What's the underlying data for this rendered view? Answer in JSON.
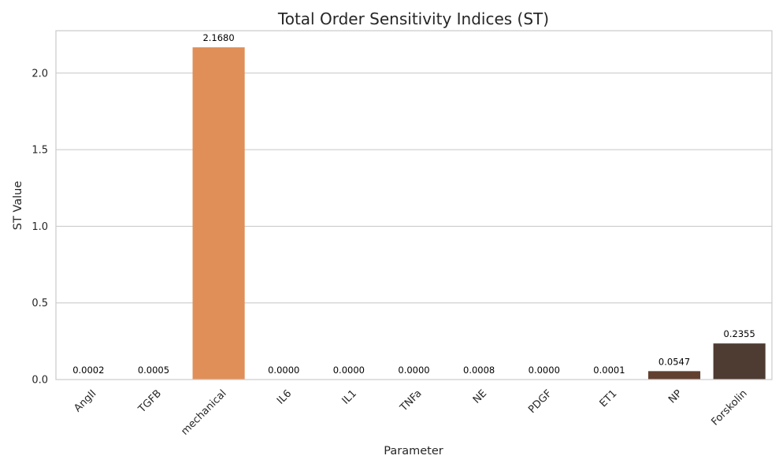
{
  "chart_data": {
    "type": "bar",
    "title": "Total Order Sensitivity Indices (ST)",
    "xlabel": "Parameter",
    "ylabel": "ST Value",
    "categories": [
      "AngII",
      "TGFB",
      "mechanical",
      "IL6",
      "IL1",
      "TNFa",
      "NE",
      "PDGF",
      "ET1",
      "NP",
      "Forskolin"
    ],
    "values": [
      0.0002,
      0.0005,
      2.168,
      0.0,
      0.0,
      0.0,
      0.0008,
      0.0,
      0.0001,
      0.0547,
      0.2355
    ],
    "value_labels": [
      "0.0002",
      "0.0005",
      "2.1680",
      "0.0000",
      "0.0000",
      "0.0000",
      "0.0008",
      "0.0000",
      "0.0001",
      "0.0547",
      "0.2355"
    ],
    "colors": [
      "#f7b98a",
      "#f3a873",
      "#e08f58",
      "#d0804c",
      "#bf7342",
      "#ad673b",
      "#9a5a34",
      "#885030",
      "#76462c",
      "#614030",
      "#4e3b31"
    ],
    "ylim": [
      0,
      2.2764
    ],
    "yticks": [
      0.0,
      0.5,
      1.0,
      1.5,
      2.0
    ],
    "ytick_labels": [
      "0.0",
      "0.5",
      "1.0",
      "1.5",
      "2.0"
    ],
    "grid": true,
    "grid_axis": "y",
    "legend": false
  }
}
